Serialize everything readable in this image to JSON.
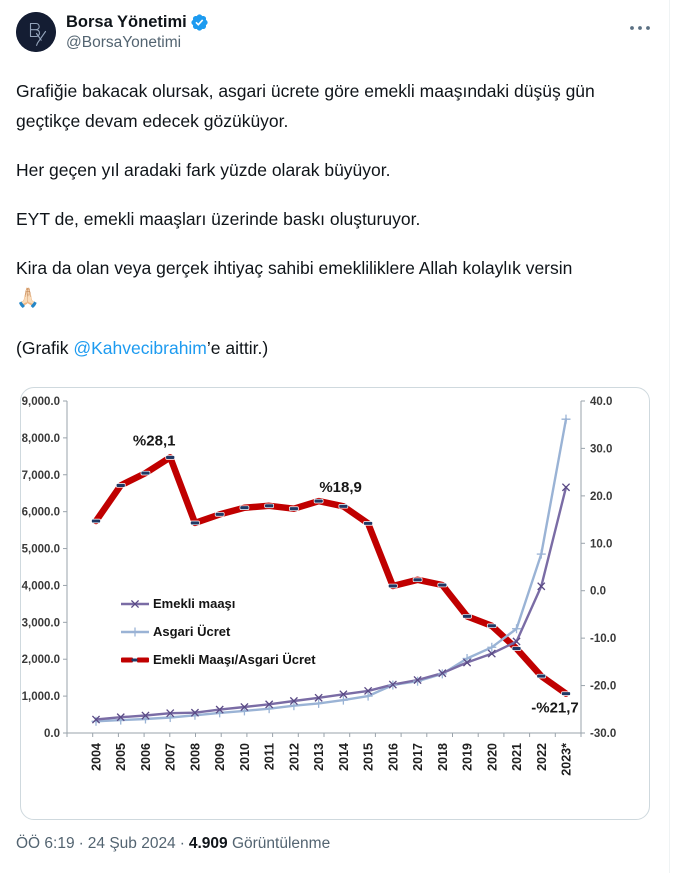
{
  "header": {
    "display_name": "Borsa Yönetimi",
    "handle": "@BorsaYonetimi",
    "avatar_monogram": "BY",
    "verified_color": "#1d9bf0"
  },
  "tweet": {
    "paragraphs": [
      {
        "text": "Grafiğie bakacak olursak, asgari ücrete göre emekli maaşındaki düşüş gün geçtikçe devam edecek gözüküyor."
      },
      {
        "text": "Her geçen yıl aradaki fark yüzde olarak büyüyor."
      },
      {
        "text": "EYT de, emekli maaşları üzerinde baskı oluşturuyor."
      },
      {
        "text": "Kira da olan veya gerçek ihtiyaç sahibi emekliliklere Allah kolaylık versin",
        "emoji": "🙏🏻"
      },
      {
        "prefix": "(Grafik ",
        "link": "@Kahvecibrahim",
        "suffix": "’e aittir.)"
      }
    ]
  },
  "footer": {
    "time": "ÖÖ 6:19",
    "date": "24 Şub 2024",
    "separator": "·",
    "views_count": "4.909",
    "views_label": "Görüntülenme"
  },
  "chart_data": {
    "type": "line",
    "categories": [
      "2004",
      "2005",
      "2006",
      "2007",
      "2008",
      "2009",
      "2010",
      "2011",
      "2012",
      "2013",
      "2014",
      "2015",
      "2016",
      "2017",
      "2018",
      "2019",
      "2020",
      "2021",
      "2022",
      "2023*"
    ],
    "series": [
      {
        "name": "Emekli maaşı",
        "axis": "left",
        "color": "#7a6ca5",
        "marker_color": "#5a4a85",
        "marker": "x",
        "values": [
          365,
          428,
          474,
          537,
          550,
          634,
          704,
          777,
          868,
          955,
          1050,
          1142,
          1313,
          1436,
          1622,
          1911,
          2152,
          2481,
          3977,
          6661
        ]
      },
      {
        "name": "Asgari Ücret",
        "axis": "left",
        "color": "#9ab3d5",
        "marker_color": "#9ab3d5",
        "marker": "plus",
        "values": [
          318,
          350,
          380,
          419,
          481,
          546,
          599,
          659,
          740,
          803,
          891,
          1000,
          1300,
          1404,
          1603,
          2020,
          2324,
          2826,
          4850,
          8507
        ]
      },
      {
        "name": "Emekli Maaşı/Asgari Ücret",
        "axis": "right",
        "color": "#c00000",
        "marker_color": "#1f3864",
        "marker": "dash",
        "values": [
          14.7,
          22.2,
          24.8,
          28.1,
          14.3,
          16.1,
          17.5,
          17.9,
          17.3,
          18.9,
          17.8,
          14.2,
          1.0,
          2.3,
          1.2,
          -5.4,
          -7.4,
          -12.2,
          -18.0,
          -21.7
        ]
      }
    ],
    "left_axis": {
      "min": 0,
      "max": 9000,
      "step": 1000
    },
    "right_axis": {
      "min": -30,
      "max": 40,
      "step": 10
    },
    "annotations": [
      {
        "text": "%28,1",
        "category": "2007"
      },
      {
        "text": "%18,9",
        "category": "2013"
      },
      {
        "text": "-%21,7",
        "category": "2023*"
      }
    ],
    "legend": [
      "Emekli maaşı",
      "Asgari Ücret",
      "Emekli Maaşı/Asgari Ücret"
    ],
    "legend_position": "middle-left",
    "grid": false,
    "title": "",
    "xlabel": "",
    "ylabel": ""
  }
}
